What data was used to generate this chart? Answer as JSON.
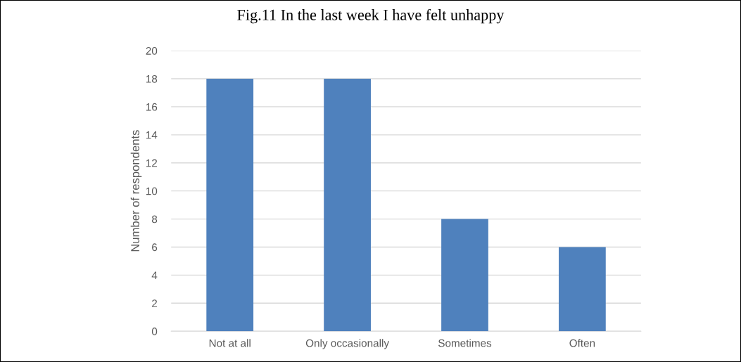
{
  "chart_data": {
    "type": "bar",
    "title": "Fig.11 In the last week I have felt unhappy",
    "ylabel": "Number of respondents",
    "categories": [
      "Not at all",
      "Only occasionally",
      "Sometimes",
      "Often"
    ],
    "values": [
      18,
      18,
      8,
      6
    ],
    "color": "#4f81bd",
    "ylim": [
      0,
      20
    ],
    "yticks": [
      0,
      2,
      4,
      6,
      8,
      10,
      12,
      14,
      16,
      18,
      20
    ],
    "grid": "y"
  }
}
